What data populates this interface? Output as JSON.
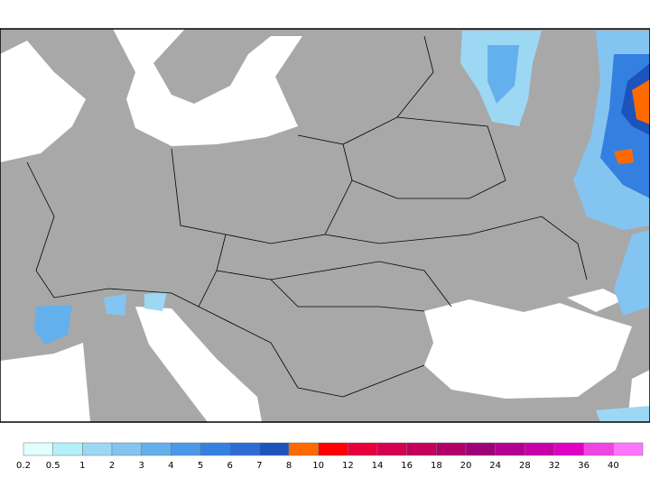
{
  "colorbar": {
    "ticks": [
      0.2,
      0.5,
      1,
      2,
      3,
      4,
      5,
      6,
      7,
      8,
      10,
      12,
      14,
      16,
      18,
      20,
      24,
      28,
      32,
      36,
      40
    ],
    "colors": [
      "#e0ffff",
      "#b4f0f8",
      "#9cd8f4",
      "#84c4f0",
      "#64b0ec",
      "#4c98e8",
      "#3480e0",
      "#2c6cd4",
      "#1c54bc",
      "#ff6a00",
      "#ff0000",
      "#e8003c",
      "#d40050",
      "#c4005c",
      "#b00068",
      "#a00078",
      "#b40090",
      "#c800a8",
      "#e000c4",
      "#f044e4",
      "#ff74ff"
    ]
  }
}
